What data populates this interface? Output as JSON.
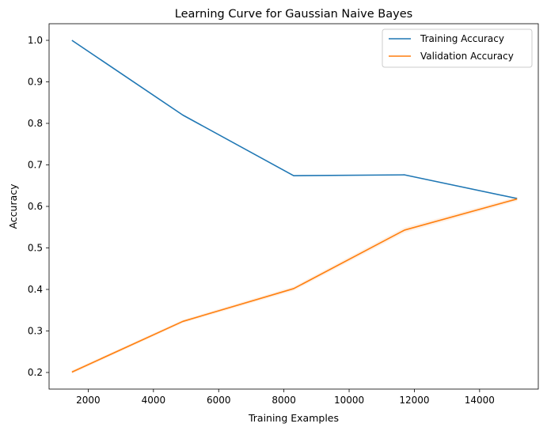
{
  "chart_data": {
    "type": "line",
    "title": "Learning Curve for Gaussian Naive Bayes",
    "xlabel": "Training Examples",
    "ylabel": "Accuracy",
    "xlim": [
      800,
      15800
    ],
    "ylim": [
      0.16,
      1.04
    ],
    "xticks": [
      2000,
      4000,
      6000,
      8000,
      10000,
      12000,
      14000
    ],
    "yticks": [
      0.2,
      0.3,
      0.4,
      0.5,
      0.6,
      0.7,
      0.8,
      0.9,
      1.0
    ],
    "grid": false,
    "legend_position": "top-right",
    "x": [
      1500,
      4900,
      8300,
      11700,
      15150
    ],
    "series": [
      {
        "name": "Training Accuracy",
        "color": "#1f77b4",
        "values": [
          1.0,
          0.82,
          0.674,
          0.676,
          0.619
        ]
      },
      {
        "name": "Validation Accuracy",
        "color": "#ff7f0e",
        "values": [
          0.201,
          0.323,
          0.402,
          0.543,
          0.618
        ],
        "band": [
          0.004,
          0.004,
          0.005,
          0.006,
          0.005
        ]
      }
    ]
  }
}
